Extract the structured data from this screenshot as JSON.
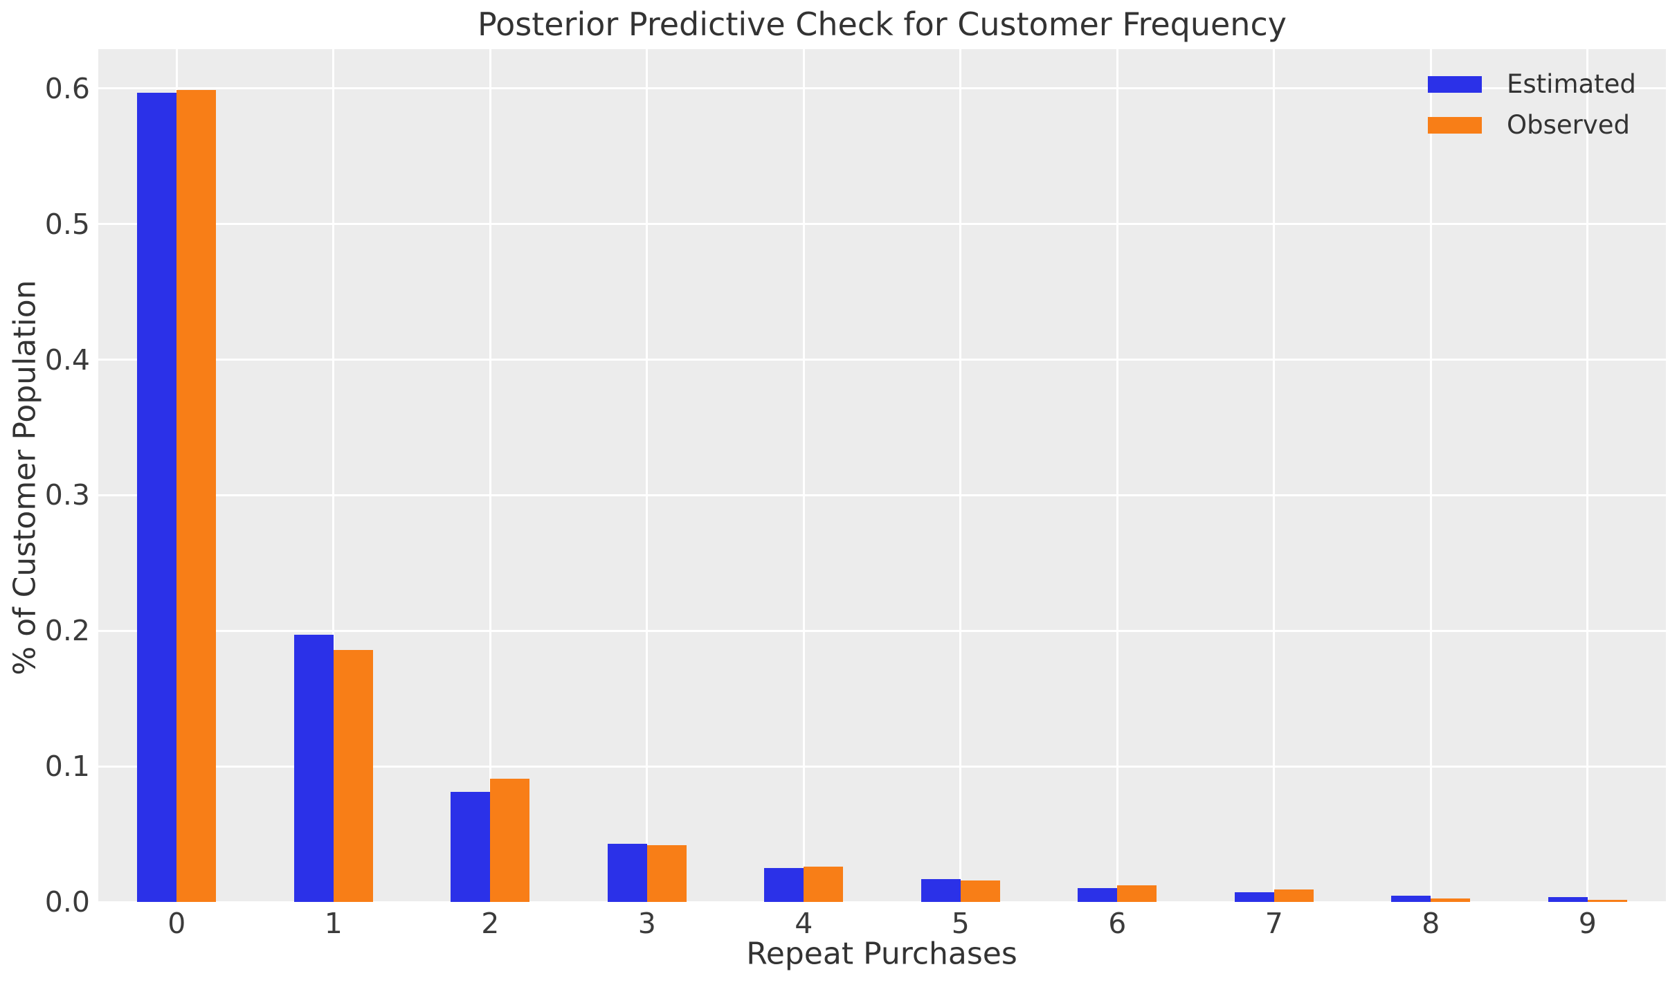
{
  "chart_data": {
    "type": "bar",
    "title": "Posterior Predictive Check for Customer Frequency",
    "xlabel": "Repeat Purchases",
    "ylabel": "% of Customer Population",
    "categories": [
      "0",
      "1",
      "2",
      "3",
      "4",
      "5",
      "6",
      "7",
      "8",
      "9"
    ],
    "series": [
      {
        "name": "Estimated",
        "color": "#2B31E8",
        "values": [
          0.597,
          0.197,
          0.081,
          0.043,
          0.025,
          0.017,
          0.01,
          0.007,
          0.0045,
          0.0035
        ]
      },
      {
        "name": "Observed",
        "color": "#F87E17",
        "values": [
          0.599,
          0.186,
          0.091,
          0.042,
          0.026,
          0.016,
          0.012,
          0.009,
          0.0027,
          0.0017
        ]
      }
    ],
    "ylim": [
      0,
      0.629
    ],
    "yticks": [
      0.0,
      0.1,
      0.2,
      0.3,
      0.4,
      0.5,
      0.6
    ],
    "ytick_labels": [
      "0.0",
      "0.1",
      "0.2",
      "0.3",
      "0.4",
      "0.5",
      "0.6"
    ],
    "grid": true,
    "grid_color": "#FFFFFF",
    "plot_background": "#ECECEC",
    "legend_position": "upper right",
    "legend_labels": [
      "Estimated",
      "Observed"
    ]
  }
}
